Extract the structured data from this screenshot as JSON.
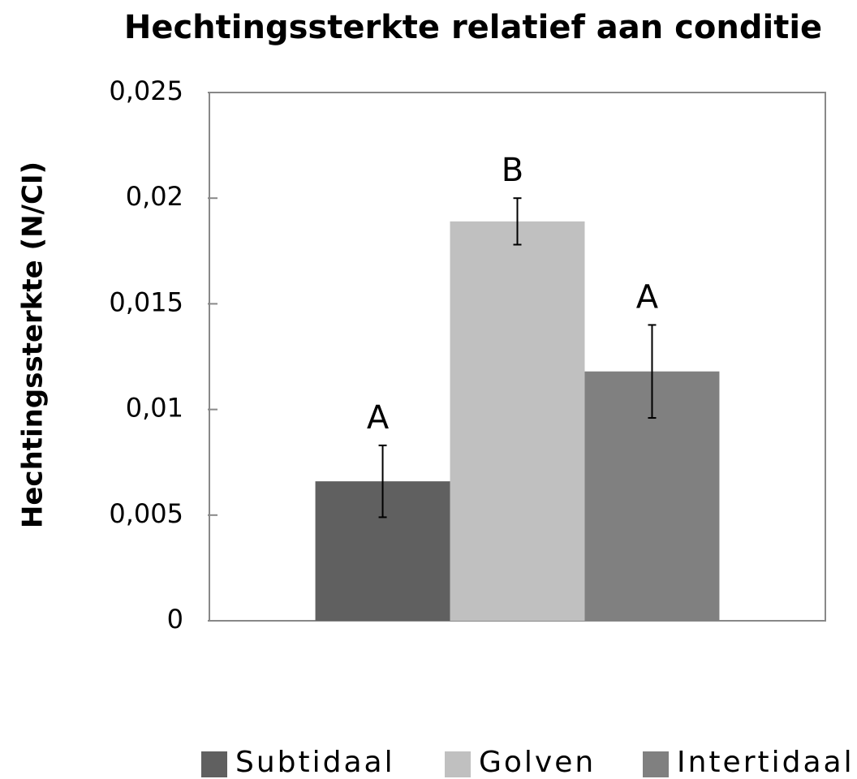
{
  "chart_data": {
    "type": "bar",
    "title": "Hechtingssterkte relatief aan conditie",
    "y_label": "Hechtingssterkte (N/CI)",
    "categories": [
      null
    ],
    "series": [
      {
        "name": "Subtidaal",
        "color": "#606060",
        "values": [
          0.0066
        ],
        "errors": [
          0.0017
        ],
        "letters": [
          "A"
        ]
      },
      {
        "name": "Golven",
        "color": "#c0c0c0",
        "values": [
          0.0189
        ],
        "errors": [
          0.0011
        ],
        "letters": [
          "B"
        ]
      },
      {
        "name": "Intertidaal",
        "color": "#808080",
        "values": [
          0.0118
        ],
        "errors": [
          0.0022
        ],
        "letters": [
          "A"
        ]
      }
    ],
    "ylim": [
      0,
      0.025
    ],
    "yticks": [
      0,
      {
        "value": 0.005,
        "label": "0,005"
      },
      {
        "value": 0.01,
        "label": "0,01"
      },
      {
        "value": 0.015,
        "label": "0,015"
      },
      {
        "value": 0.02,
        "label": "0,02"
      },
      {
        "value": 0.025,
        "label": "0,025"
      }
    ],
    "grid": false,
    "legend": "bottom"
  }
}
